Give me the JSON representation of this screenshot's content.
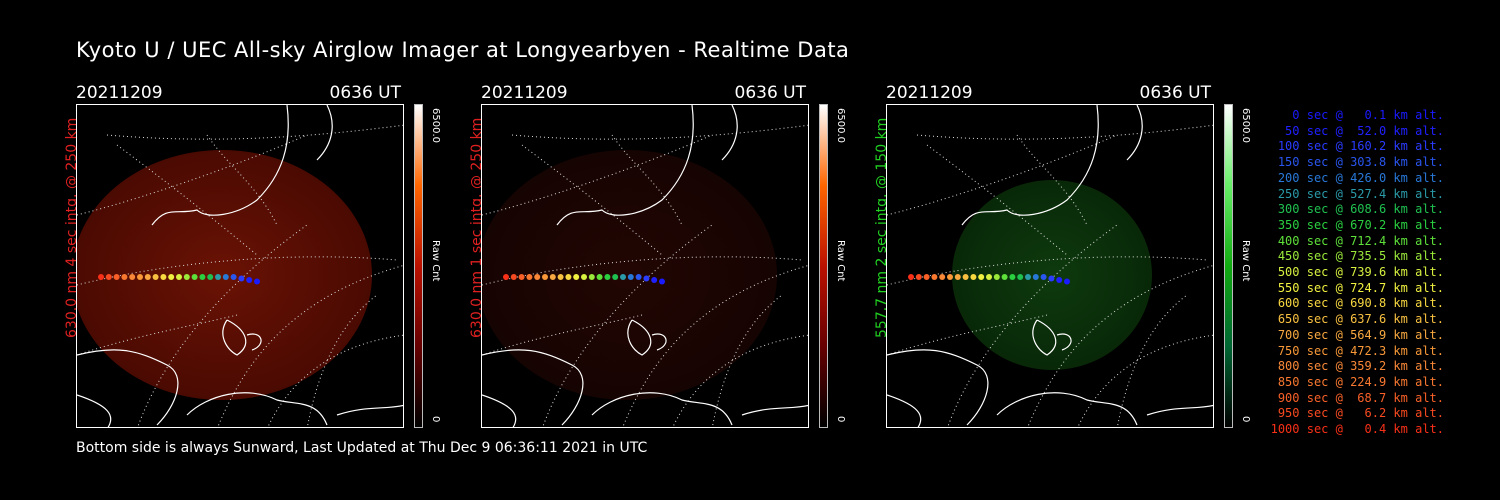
{
  "title": "Kyoto U / UEC All-sky Airglow Imager at Longyearbyen - Realtime Data",
  "footer": "Bottom side is always Sunward, Last Updated at Thu Dec  9 06:36:11 2021 in UTC",
  "panels": [
    {
      "date": "20211209",
      "time": "0636 UT",
      "label": "630.0 nm 4 sec intg. @ 250 km",
      "label_color": "#e02020",
      "cbar_max": "6500.0",
      "cbar_unit": "Raw Cnt",
      "cbar_min": "0",
      "tint": "red",
      "intensity": "bright"
    },
    {
      "date": "20211209",
      "time": "0636 UT",
      "label": "630.0 nm 1 sec intg. @ 250 km",
      "label_color": "#e02020",
      "cbar_max": "6500.0",
      "cbar_unit": "Raw Cnt",
      "cbar_min": "0",
      "tint": "red",
      "intensity": "faint"
    },
    {
      "date": "20211209",
      "time": "0636 UT",
      "label": "557.7 nm 2 sec intg. @ 150 km",
      "label_color": "#20d020",
      "cbar_max": "6500.0",
      "cbar_unit": "Raw Cnt",
      "cbar_min": "0",
      "tint": "green",
      "intensity": "medium"
    }
  ],
  "legend": [
    {
      "text": "0 sec @   0.1 km alt.",
      "color": "#1a1aff"
    },
    {
      "text": "50 sec @  52.0 km alt.",
      "color": "#2020ff"
    },
    {
      "text": "100 sec @ 160.2 km alt.",
      "color": "#2a3cff"
    },
    {
      "text": "150 sec @ 303.8 km alt.",
      "color": "#2a56f0"
    },
    {
      "text": "200 sec @ 426.0 km alt.",
      "color": "#2878d8"
    },
    {
      "text": "250 sec @ 527.4 km alt.",
      "color": "#2a9aa8"
    },
    {
      "text": "300 sec @ 608.6 km alt.",
      "color": "#1fc050"
    },
    {
      "text": "350 sec @ 670.2 km alt.",
      "color": "#2ad040"
    },
    {
      "text": "400 sec @ 712.4 km alt.",
      "color": "#5ee03a"
    },
    {
      "text": "450 sec @ 735.5 km alt.",
      "color": "#9ae83a"
    },
    {
      "text": "500 sec @ 739.6 km alt.",
      "color": "#d8f040"
    },
    {
      "text": "550 sec @ 724.7 km alt.",
      "color": "#f0f040"
    },
    {
      "text": "600 sec @ 690.8 km alt.",
      "color": "#f8d840"
    },
    {
      "text": "650 sec @ 637.6 km alt.",
      "color": "#f8c040"
    },
    {
      "text": "700 sec @ 564.9 km alt.",
      "color": "#f8a840"
    },
    {
      "text": "750 sec @ 472.3 km alt.",
      "color": "#f89838"
    },
    {
      "text": "800 sec @ 359.2 km alt.",
      "color": "#f88838"
    },
    {
      "text": "850 sec @ 224.9 km alt.",
      "color": "#f87830"
    },
    {
      "text": "900 sec @  68.7 km alt.",
      "color": "#f86028"
    },
    {
      "text": "950 sec @   6.2 km alt.",
      "color": "#f84a20"
    },
    {
      "text": "1000 sec @   0.4 km alt.",
      "color": "#f83018"
    }
  ]
}
